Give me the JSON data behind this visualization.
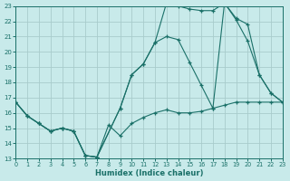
{
  "xlabel": "Humidex (Indice chaleur)",
  "bg_color": "#c8eaea",
  "grid_color": "#a8cccc",
  "line_color": "#1a7068",
  "xlim": [
    0,
    23
  ],
  "ylim": [
    13,
    23
  ],
  "yticks": [
    13,
    14,
    15,
    16,
    17,
    18,
    19,
    20,
    21,
    22,
    23
  ],
  "xticks": [
    0,
    1,
    2,
    3,
    4,
    5,
    6,
    7,
    8,
    9,
    10,
    11,
    12,
    13,
    14,
    15,
    16,
    17,
    18,
    19,
    20,
    21,
    22,
    23
  ],
  "curve1_x": [
    0,
    1,
    2,
    3,
    4,
    5,
    6,
    7,
    8,
    9,
    10,
    11,
    12,
    13,
    14,
    15,
    16,
    17,
    18,
    19,
    20,
    21,
    22,
    23
  ],
  "curve1_y": [
    16.7,
    15.8,
    15.3,
    14.8,
    15.0,
    14.8,
    13.2,
    13.1,
    15.2,
    14.5,
    15.3,
    15.7,
    16.0,
    16.2,
    16.0,
    16.0,
    16.1,
    16.3,
    16.5,
    16.7,
    16.7,
    16.7,
    16.7,
    16.7
  ],
  "curve2_x": [
    0,
    1,
    2,
    3,
    4,
    5,
    6,
    7,
    9,
    10,
    11,
    12,
    13,
    14,
    15,
    16,
    17,
    18,
    19,
    20,
    21,
    22,
    23
  ],
  "curve2_y": [
    16.7,
    15.8,
    15.3,
    14.8,
    15.0,
    14.8,
    13.2,
    13.1,
    16.3,
    18.5,
    19.2,
    20.6,
    21.0,
    20.8,
    19.3,
    17.8,
    16.3,
    23.2,
    22.1,
    20.7,
    18.5,
    17.3,
    16.7
  ],
  "curve3_x": [
    0,
    1,
    2,
    3,
    4,
    5,
    6,
    7,
    9,
    10,
    11,
    12,
    13,
    14,
    15,
    16,
    17,
    18,
    19,
    20,
    21,
    22,
    23
  ],
  "curve3_y": [
    16.7,
    15.8,
    15.3,
    14.8,
    15.0,
    14.8,
    13.2,
    13.1,
    16.3,
    18.5,
    19.2,
    20.6,
    23.2,
    23.0,
    22.8,
    22.7,
    22.7,
    23.2,
    22.2,
    21.8,
    18.5,
    17.3,
    16.7
  ]
}
